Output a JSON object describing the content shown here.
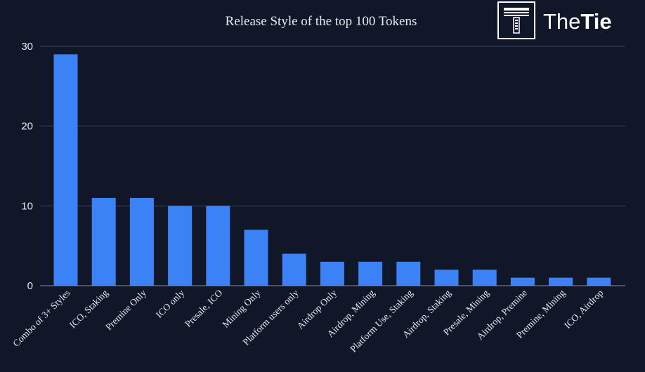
{
  "chart_data": {
    "type": "bar",
    "title": "Release Style of the top 100 Tokens",
    "xlabel": "",
    "ylabel": "",
    "categories": [
      "Combo of 3+ Styles",
      "ICO, Staking",
      "Premine Only",
      "ICO only",
      "Presale, ICO",
      "Mining Only",
      "Platform users only",
      "Airdrop Only",
      "Airdrop, Mining",
      "Platform Use, Staking",
      "Airdrop, Staking",
      "Presale, Mining",
      "Airdrop, Premine",
      "Premine, Mining",
      "ICO, Airdrop"
    ],
    "values": [
      29,
      11,
      11,
      10,
      10,
      7,
      4,
      3,
      3,
      3,
      2,
      2,
      1,
      1,
      1
    ],
    "ylim": [
      0,
      30
    ],
    "yticks": [
      0,
      10,
      20,
      30
    ],
    "grid": true,
    "legend": "none",
    "bar_color": "#3b82f6",
    "background_color": "#0f1729"
  },
  "logo": {
    "text_regular": "The",
    "text_bold": "Tie",
    "icon": "thetie-logo-icon"
  }
}
